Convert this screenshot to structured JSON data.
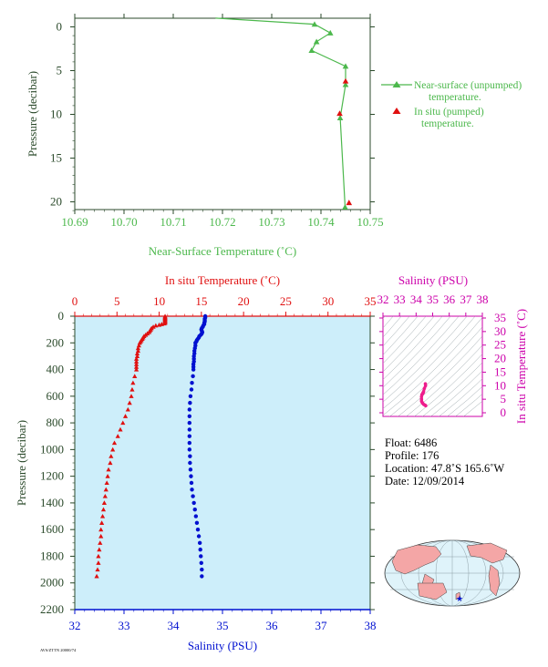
{
  "colors": {
    "green": "#4cb84c",
    "axis_dark": "#2b4a2b",
    "red": "#e01010",
    "blue": "#0010d0",
    "magenta": "#cc00aa",
    "pink": "#ee1c8c",
    "panel_bg": "#cdeefa",
    "map_bg": "#dff3fa",
    "land": "#f4a6a6"
  },
  "float_info": {
    "float": "Float:  6486",
    "profile": "Profile:  176",
    "location": "Location:  47.8˚S  165.6˚W",
    "date": "Date:  12/09/2014"
  },
  "footer_code": "AVS/ZTTN 20000/74",
  "chart_data": [
    {
      "type": "line",
      "id": "near-surface",
      "xlabel": "Near-Surface Temperature (˚C)",
      "ylabel": "Pressure (decibar)",
      "xlim": [
        10.69,
        10.75
      ],
      "ylim": [
        0,
        22
      ],
      "y_inverted": true,
      "xticks": [
        "10.69",
        "10.70",
        "10.71",
        "10.72",
        "10.73",
        "10.74",
        "10.75"
      ],
      "yticks": [
        "0",
        "5",
        "10",
        "15",
        "20"
      ],
      "legend_position": "right",
      "series": [
        {
          "name": "Near-surface (unpumped) temperature.",
          "marker": "triangle",
          "points": [
            [
              10.7186,
              -1.0
            ],
            [
              10.7387,
              -0.3
            ],
            [
              10.7419,
              0.7
            ],
            [
              10.7391,
              1.7
            ],
            [
              10.7381,
              2.7
            ],
            [
              10.745,
              4.5
            ],
            [
              10.745,
              6.6
            ],
            [
              10.7439,
              10.4
            ],
            [
              10.7449,
              20.6
            ]
          ]
        },
        {
          "name": "In situ (pumped) temperature.",
          "marker": "triangle",
          "points": [
            [
              10.745,
              6.2
            ],
            [
              10.7438,
              9.9
            ],
            [
              10.7457,
              20.1
            ]
          ]
        }
      ]
    },
    {
      "type": "scatter",
      "id": "profile",
      "xlabel_top": "In situ Temperature (˚C)",
      "xlabel_bottom": "Salinity (PSU)",
      "ylabel": "Pressure (decibar)",
      "temperature_lim": [
        0,
        35
      ],
      "salinity_lim": [
        32,
        38
      ],
      "ylim": [
        0,
        2200
      ],
      "y_inverted": true,
      "temperature_ticks": [
        "0",
        "5",
        "10",
        "15",
        "20",
        "25",
        "30",
        "35"
      ],
      "salinity_ticks": [
        "32",
        "33",
        "34",
        "35",
        "36",
        "37",
        "38"
      ],
      "pressure_ticks": [
        "0",
        "200",
        "400",
        "600",
        "800",
        "1000",
        "1200",
        "1400",
        "1600",
        "1800",
        "2000",
        "2200"
      ],
      "temperature": {
        "pressure": [
          0,
          5,
          10,
          15,
          20,
          25,
          30,
          35,
          40,
          45,
          50,
          55,
          60,
          65,
          70,
          80,
          90,
          100,
          110,
          120,
          130,
          140,
          150,
          160,
          170,
          180,
          190,
          200,
          220,
          240,
          260,
          280,
          300,
          320,
          340,
          360,
          380,
          400,
          450,
          500,
          550,
          600,
          650,
          700,
          750,
          800,
          850,
          900,
          950,
          1000,
          1050,
          1100,
          1150,
          1200,
          1250,
          1300,
          1350,
          1400,
          1450,
          1500,
          1550,
          1600,
          1650,
          1700,
          1750,
          1800,
          1850,
          1900,
          1950
        ],
        "values": [
          10.7,
          10.7,
          10.7,
          10.7,
          10.7,
          10.7,
          10.7,
          10.7,
          10.7,
          10.7,
          10.7,
          10.6,
          10.3,
          10.0,
          9.6,
          9.3,
          9.1,
          9.0,
          8.9,
          8.8,
          8.6,
          8.4,
          8.2,
          8.1,
          8.0,
          7.9,
          7.8,
          7.7,
          7.6,
          7.5,
          7.5,
          7.4,
          7.4,
          7.3,
          7.3,
          7.3,
          7.3,
          7.3,
          7.1,
          6.9,
          6.8,
          6.7,
          6.5,
          6.3,
          6.0,
          5.7,
          5.4,
          5.1,
          4.7,
          4.5,
          4.3,
          4.2,
          4.0,
          3.9,
          3.8,
          3.7,
          3.6,
          3.5,
          3.4,
          3.3,
          3.2,
          3.1,
          3.1,
          3.0,
          2.9,
          2.8,
          2.8,
          2.7,
          2.6
        ]
      },
      "salinity": {
        "pressure": [
          0,
          10,
          20,
          30,
          40,
          50,
          60,
          70,
          80,
          90,
          100,
          110,
          120,
          130,
          140,
          150,
          160,
          170,
          180,
          190,
          200,
          220,
          240,
          260,
          280,
          300,
          320,
          340,
          360,
          380,
          400,
          450,
          500,
          550,
          600,
          650,
          700,
          750,
          800,
          850,
          900,
          950,
          1000,
          1050,
          1100,
          1150,
          1200,
          1250,
          1300,
          1350,
          1400,
          1450,
          1500,
          1550,
          1600,
          1650,
          1700,
          1750,
          1800,
          1850,
          1900,
          1950
        ],
        "values": [
          34.65,
          34.65,
          34.64,
          34.64,
          34.64,
          34.63,
          34.63,
          34.61,
          34.6,
          34.58,
          34.57,
          34.58,
          34.59,
          34.58,
          34.56,
          34.53,
          34.52,
          34.5,
          34.48,
          34.47,
          34.45,
          34.45,
          34.44,
          34.43,
          34.43,
          34.42,
          34.42,
          34.42,
          34.41,
          34.41,
          34.41,
          34.4,
          34.38,
          34.37,
          34.35,
          34.34,
          34.33,
          34.33,
          34.33,
          34.33,
          34.33,
          34.33,
          34.33,
          34.34,
          34.34,
          34.35,
          34.36,
          34.37,
          34.38,
          34.4,
          34.42,
          34.44,
          34.46,
          34.48,
          34.5,
          34.52,
          34.54,
          34.55,
          34.56,
          34.57,
          34.58,
          34.58
        ]
      }
    },
    {
      "type": "scatter",
      "id": "ts-diagram",
      "xlabel_top": "Salinity (PSU)",
      "ylabel_right": "In situ Temperature (˚C)",
      "xlim": [
        32,
        38
      ],
      "ylim": [
        0,
        35
      ],
      "xticks": [
        "32",
        "33",
        "34",
        "35",
        "36",
        "37",
        "38"
      ],
      "yticks": [
        "0",
        "5",
        "10",
        "15",
        "20",
        "25",
        "30",
        "35"
      ],
      "points": [
        [
          34.56,
          10.7
        ],
        [
          34.57,
          10.0
        ],
        [
          34.5,
          9.0
        ],
        [
          34.45,
          7.8
        ],
        [
          34.43,
          7.4
        ],
        [
          34.41,
          7.3
        ],
        [
          34.38,
          6.9
        ],
        [
          34.35,
          6.7
        ],
        [
          34.33,
          6.0
        ],
        [
          34.33,
          5.0
        ],
        [
          34.33,
          4.3
        ],
        [
          34.36,
          3.9
        ],
        [
          34.4,
          3.5
        ],
        [
          34.46,
          3.1
        ],
        [
          34.52,
          2.9
        ],
        [
          34.57,
          2.7
        ],
        [
          34.58,
          2.6
        ]
      ]
    }
  ]
}
